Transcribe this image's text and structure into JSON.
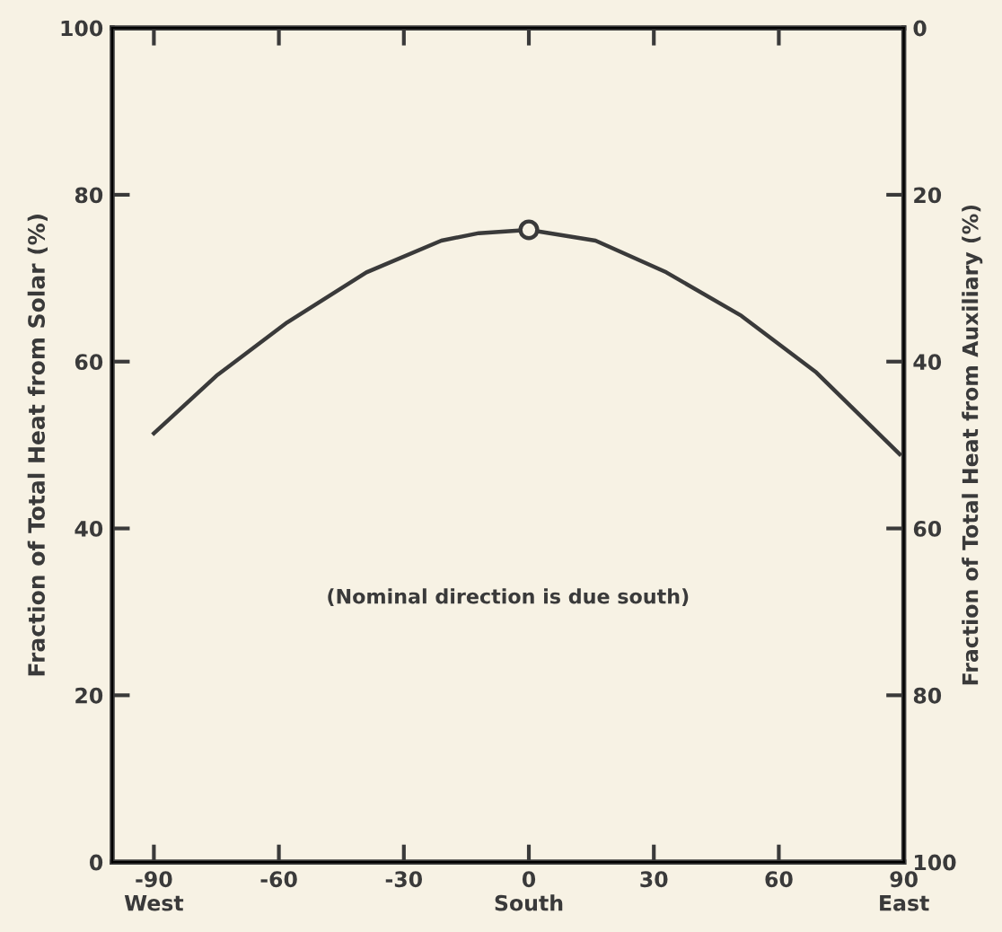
{
  "chart_data": {
    "type": "line",
    "ylabel": "Fraction of Total Heat from Solar (%)",
    "y2label": "Fraction of Total Heat from Auxiliary (%)",
    "annotations": [
      "(Nominal direction is due south)"
    ],
    "series": [
      {
        "color": "#3a3a3a",
        "x": [
          -90,
          -75,
          -58,
          -39,
          -21,
          -12,
          0,
          16,
          33,
          51,
          69,
          89
        ],
        "values": [
          51.4,
          58.3,
          64.7,
          70.7,
          74.5,
          75.4,
          75.8,
          74.5,
          70.7,
          65.5,
          58.7,
          48.9
        ]
      },
      {
        "type": "scatter",
        "color": "#3a3a3a",
        "marker": "circle",
        "x": [
          0
        ],
        "values": [
          75.8
        ]
      }
    ],
    "xlim": [
      -100,
      90
    ],
    "ylim": [
      0,
      100
    ],
    "y2lim": [
      100,
      0
    ],
    "xticks": [
      {
        "value": -90,
        "label": "-90\nWest"
      },
      -60,
      -30,
      {
        "value": 0,
        "label": "0\nSouth"
      },
      30,
      60,
      {
        "value": 90,
        "label": "90\nEast"
      }
    ],
    "yticks": [
      0,
      20,
      40,
      60,
      80,
      100
    ],
    "y2ticks": [
      0,
      20,
      40,
      60,
      80,
      100
    ],
    "grid": false,
    "legend": false
  }
}
